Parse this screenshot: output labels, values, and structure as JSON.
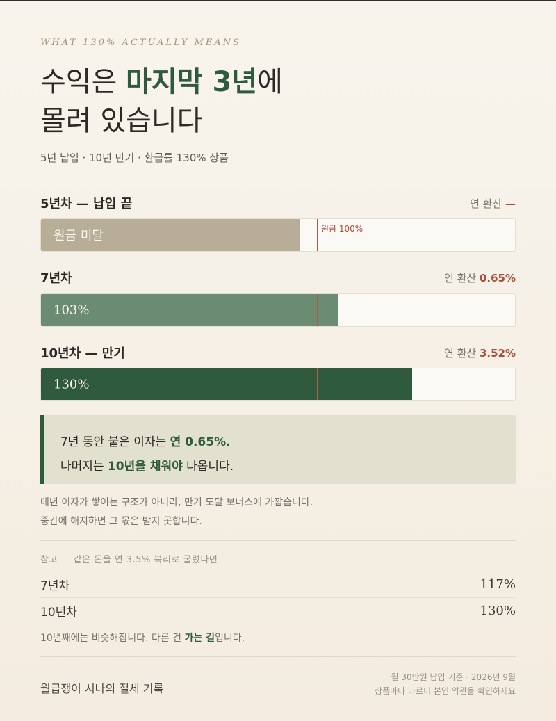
{
  "eyebrow": "WHAT 130% ACTUALLY MEANS",
  "headline": {
    "part1": "수익은 ",
    "highlight": "마지막 3년",
    "part2": "에",
    "line2": "몰려 있습니다"
  },
  "subtitle": "5년 납입 · 10년 만기 · 환급률 130% 상품",
  "colors": {
    "accent_green": "#2f5a3d",
    "mid_green": "#6b8c72",
    "tan": "#b8ad97",
    "rate_red": "#a94e38"
  },
  "rows": [
    {
      "label": "5년차 — 납입 끝",
      "rate_prefix": "연 환산 ",
      "rate_value": "—",
      "bar_text": "원금 미달",
      "marker_label": "원금 100%",
      "fill_fraction": 0.545
    },
    {
      "label": "7년차",
      "rate_prefix": "연 환산 ",
      "rate_value": "0.65%",
      "bar_text": "103%",
      "fill_fraction": 0.625
    },
    {
      "label": "10년차 — 만기",
      "rate_prefix": "연 환산 ",
      "rate_value": "3.52%",
      "bar_text": "130%",
      "fill_fraction": 0.78
    }
  ],
  "principal_fraction": 0.58,
  "callout": {
    "l1_text": "7년 동안 붙은 이자는 ",
    "l1_bold": "연 0.65%.",
    "l2_text1": "나머지는 ",
    "l2_bold": "10년을 채워야",
    "l2_text2": " 나옵니다."
  },
  "note": {
    "line1": "매년 이자가 쌓이는 구조가 아니라, 만기 도달 보너스에 가깝습니다.",
    "line2": "중간에 해지하면 그 몫은 받지 못합니다."
  },
  "reference": {
    "title": "참고 — 같은 돈을 연 3.5% 복리로 굴렸다면",
    "rows": [
      {
        "label": "7년차",
        "value": "117%"
      },
      {
        "label": "10년차",
        "value": "130%"
      }
    ],
    "note_text1": "10년째에는 비슷해집니다. 다른 건 ",
    "note_bold": "가는 길",
    "note_text2": "입니다."
  },
  "footer": {
    "left": "월급쟁이 시나의 절세 기록",
    "right1": "월 30만원 납입 기준 · 2026년 9월",
    "right2": "상품마다 다르니 본인 약관을 확인하세요"
  }
}
